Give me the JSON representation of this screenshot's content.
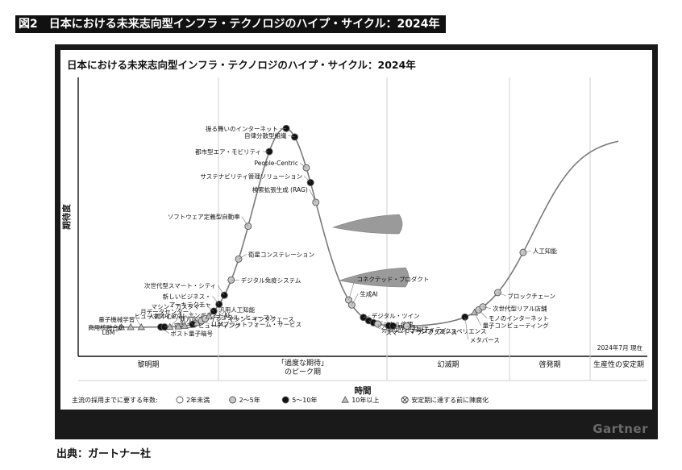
{
  "header": {
    "title": "図2　日本における未来志向型インフラ・テクノロジのハイプ・サイクル：2024年"
  },
  "source": "出典：ガートナー社",
  "logo": "Gartner",
  "chart_data": {
    "type": "scatter",
    "title": "日本における未来志向型インフラ・テクノロジのハイプ・サイクル：2024年",
    "ylabel": "期待度",
    "xlabel": "時間",
    "as_of": "2024年7月 現在",
    "phases": [
      "黎明期",
      "「過度な期待」\nのピーク期",
      "幻滅期",
      "啓発期",
      "生産性の安定期"
    ],
    "legend": {
      "title": "主流の採用までに要する年数:",
      "items": [
        {
          "key": "lt2",
          "label": "2年未満",
          "marker": "circle",
          "fill": "#ffffff"
        },
        {
          "key": "2to5",
          "label": "2～5年",
          "marker": "circle",
          "fill": "#c8c8c8"
        },
        {
          "key": "5to10",
          "label": "5～10年",
          "marker": "circle",
          "fill": "#111111"
        },
        {
          "key": "gt10",
          "label": "10年以上",
          "marker": "triangle",
          "fill": "#bdbdbd"
        },
        {
          "key": "obsolete",
          "label": "安定期に達する前に陳腐化",
          "marker": "crossed-circle",
          "fill": "#ffffff"
        }
      ]
    },
    "colors": {
      "frame": "#1a1a1a",
      "curve": "#7a7a7a",
      "grid": "#cccccc",
      "web3_nft_swirl": "#9a9a9a"
    },
    "points": [
      {
        "label": "LBM",
        "t": 0.06,
        "cat": "gt10"
      },
      {
        "label": "商用核融合炉",
        "t": 0.078,
        "cat": "gt10"
      },
      {
        "label": "量子機械学習",
        "t": 0.098,
        "cat": "gt10"
      },
      {
        "label": "ポスト量子暗号",
        "t": 0.135,
        "cat": "5to10"
      },
      {
        "label": "空間コンピューティング",
        "t": 0.142,
        "cat": "5to10"
      },
      {
        "label": "双方向ブレイン・マシン・インタフェース",
        "t": 0.152,
        "cat": "gt10"
      },
      {
        "label": "エンボディドAI",
        "t": 0.168,
        "cat": "gt10"
      },
      {
        "label": "ヒューマノイド",
        "t": 0.18,
        "cat": "gt10"
      },
      {
        "label": "人間中心のAI",
        "t": 0.195,
        "cat": "5to10"
      },
      {
        "label": "月データセンター",
        "t": 0.203,
        "cat": "gt10"
      },
      {
        "label": "LLMプラットフォーム・サービス",
        "t": 0.212,
        "cat": "2to5"
      },
      {
        "label": "デジタル・ヒューマン",
        "t": 0.219,
        "cat": "2to5"
      },
      {
        "label": "汎用人工知能",
        "t": 0.226,
        "cat": "gt10"
      },
      {
        "label": "マシン・カスタマー",
        "t": 0.235,
        "cat": "5to10"
      },
      {
        "label": "新しいビジネス・\nアーキテクチャ",
        "t": 0.245,
        "cat": "5to10"
      },
      {
        "label": "次世代型スマート・シティ",
        "t": 0.255,
        "cat": "5to10"
      },
      {
        "label": "デジタル免疫システム",
        "t": 0.268,
        "cat": "2to5"
      },
      {
        "label": "衛星コンステレーション",
        "t": 0.282,
        "cat": "2to5"
      },
      {
        "label": "ソフトウェア定義型自動車",
        "t": 0.3,
        "cat": "2to5"
      },
      {
        "label": "都市型エア・モビリティ",
        "t": 0.34,
        "cat": "5to10"
      },
      {
        "label": "振る舞いのインターネット",
        "t": 0.372,
        "cat": "5to10"
      },
      {
        "label": "自律分散型組織",
        "t": 0.388,
        "cat": "5to10"
      },
      {
        "label": "People-Centric",
        "t": 0.41,
        "cat": "2to5"
      },
      {
        "label": "サステナビリティ管理ソリューション",
        "t": 0.418,
        "cat": "5to10"
      },
      {
        "label": "検索拡張生成 (RAG)",
        "t": 0.428,
        "cat": "2to5"
      },
      {
        "label": "コネクテッド・プロダクト",
        "t": 0.49,
        "cat": "2to5"
      },
      {
        "label": "生成AI",
        "t": 0.496,
        "cat": "2to5"
      },
      {
        "label": "デジタル・ツイン",
        "t": 0.518,
        "cat": "5to10"
      },
      {
        "label": "デジタル倫理",
        "t": 0.528,
        "cat": "5to10"
      },
      {
        "label": "分散型アイデンティティ",
        "t": 0.537,
        "cat": "5to10"
      },
      {
        "label": "スマート・ワークスペース",
        "t": 0.545,
        "cat": "2to5"
      },
      {
        "label": "Web3",
        "t": 0.566,
        "cat": "5to10"
      },
      {
        "label": "イマーシブ・エクスペリエンス",
        "t": 0.574,
        "cat": "5to10"
      },
      {
        "label": "NFT",
        "t": 0.6,
        "cat": "2to5"
      },
      {
        "label": "メタバース",
        "t": 0.71,
        "cat": "5to10"
      },
      {
        "label": "量子コンピューティング",
        "t": 0.728,
        "cat": "gt10"
      },
      {
        "label": "モノのインターネット",
        "t": 0.736,
        "cat": "2to5"
      },
      {
        "label": "次世代型リアル店舗",
        "t": 0.744,
        "cat": "2to5"
      },
      {
        "label": "ブロックチェーン",
        "t": 0.772,
        "cat": "2to5"
      },
      {
        "label": "人工知能",
        "t": 0.82,
        "cat": "2to5"
      }
    ]
  }
}
